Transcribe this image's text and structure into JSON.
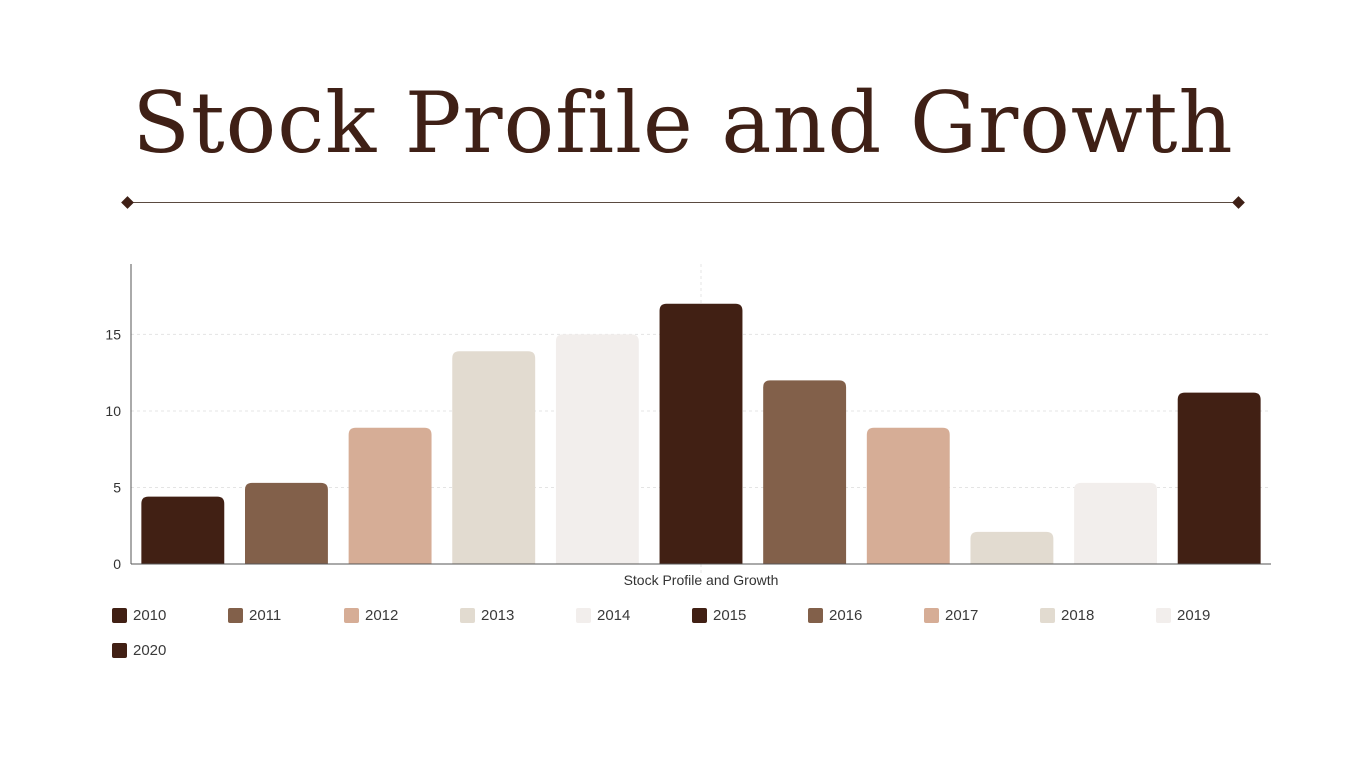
{
  "page": {
    "title": "Stock Profile and Growth"
  },
  "chart_data": {
    "type": "bar",
    "categories": [
      "2010",
      "2011",
      "2012",
      "2013",
      "2014",
      "2015",
      "2016",
      "2017",
      "2018",
      "2019",
      "2020"
    ],
    "values": [
      4.4,
      5.3,
      8.9,
      13.9,
      15,
      17,
      12,
      8.9,
      2.1,
      5.3,
      11.2
    ],
    "colors": [
      "#412014",
      "#82604a",
      "#d6ad96",
      "#e2dbd0",
      "#f2eeec",
      "#412014",
      "#82604a",
      "#d6ad96",
      "#e2dbd0",
      "#f2eeec",
      "#412014"
    ],
    "xlabel": "Stock Profile and Growth",
    "ylabel": "",
    "ylim": [
      0,
      19.6
    ],
    "yticks": [
      0,
      5,
      10,
      15
    ],
    "grid": true,
    "legend_position": "bottom-left"
  }
}
